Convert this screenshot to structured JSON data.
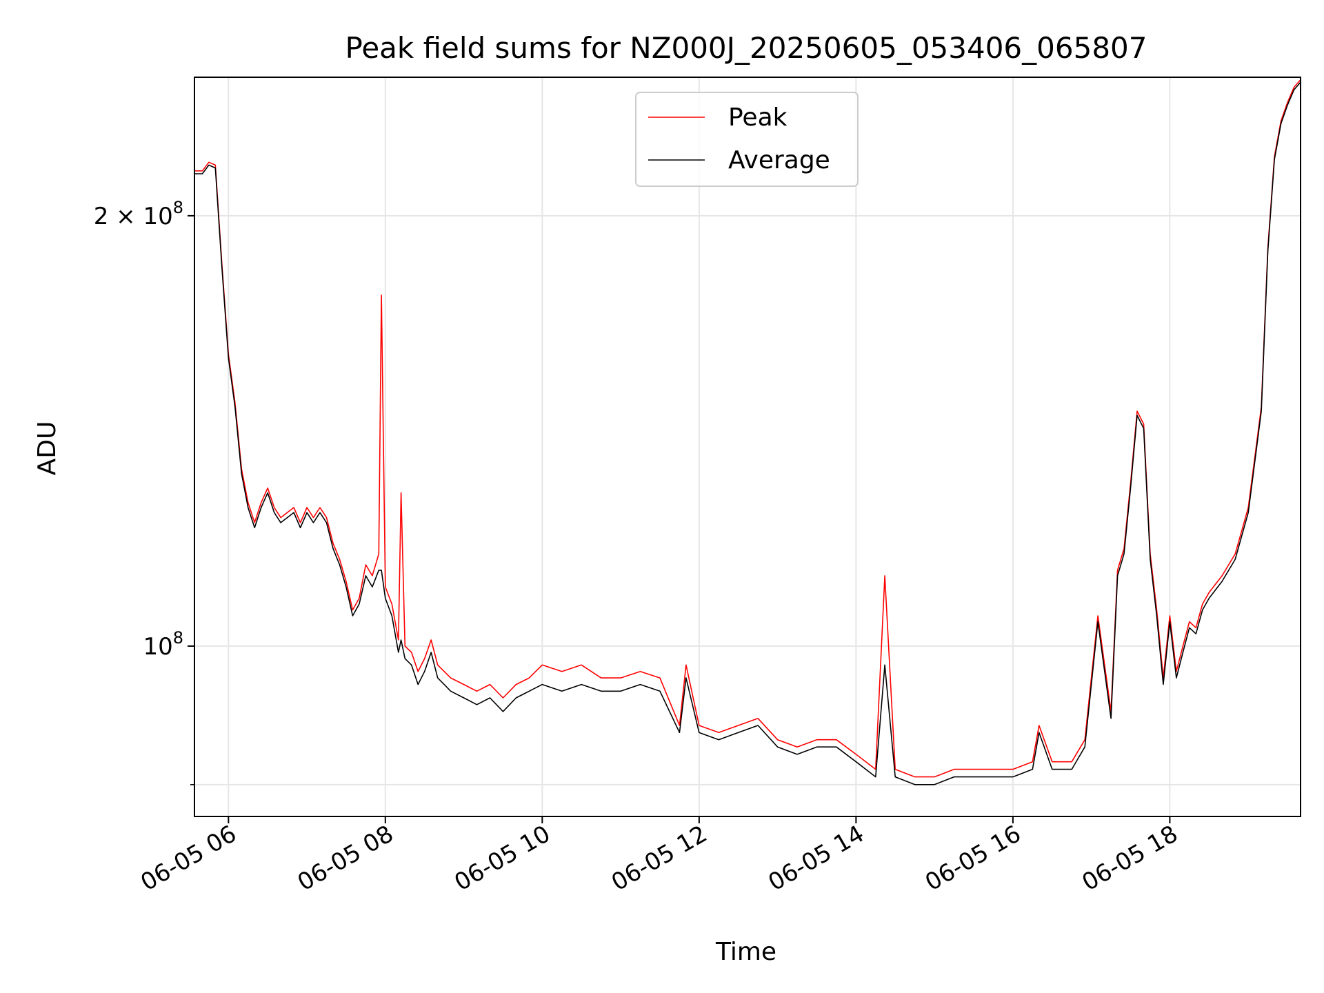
{
  "chart_data": {
    "type": "line",
    "title": "Peak field sums for NZ000J_20250605_053406_065807",
    "xlabel": "Time",
    "ylabel": "ADU",
    "yscale": "log",
    "grid": true,
    "legend_position": "top-center",
    "xlim": [
      "06-05 05:34",
      "06-05 19:40"
    ],
    "ylim": [
      76000000,
      250000000
    ],
    "x_ticks": [
      "06-05 06",
      "06-05 08",
      "06-05 10",
      "06-05 12",
      "06-05 14",
      "06-05 16",
      "06-05 18"
    ],
    "y_ticks": [
      {
        "value": 100000000,
        "label": "10",
        "sup": "8"
      },
      {
        "value": 200000000,
        "label": "2 × 10",
        "sup": "8"
      }
    ],
    "y_minor_ticks": [
      80000000
    ],
    "series": [
      {
        "name": "Peak",
        "color": "#ff0000",
        "x": [
          "06-05 05:34",
          "06-05 05:40",
          "06-05 05:45",
          "06-05 05:50",
          "06-05 05:55",
          "06-05 06:00",
          "06-05 06:05",
          "06-05 06:10",
          "06-05 06:15",
          "06-05 06:20",
          "06-05 06:25",
          "06-05 06:30",
          "06-05 06:35",
          "06-05 06:40",
          "06-05 06:45",
          "06-05 06:50",
          "06-05 06:55",
          "06-05 07:00",
          "06-05 07:05",
          "06-05 07:10",
          "06-05 07:15",
          "06-05 07:20",
          "06-05 07:25",
          "06-05 07:30",
          "06-05 07:35",
          "06-05 07:40",
          "06-05 07:45",
          "06-05 07:50",
          "06-05 07:55",
          "06-05 07:57",
          "06-05 08:00",
          "06-05 08:05",
          "06-05 08:10",
          "06-05 08:12",
          "06-05 08:15",
          "06-05 08:20",
          "06-05 08:25",
          "06-05 08:30",
          "06-05 08:35",
          "06-05 08:40",
          "06-05 08:45",
          "06-05 08:50",
          "06-05 09:00",
          "06-05 09:10",
          "06-05 09:20",
          "06-05 09:30",
          "06-05 09:40",
          "06-05 09:50",
          "06-05 10:00",
          "06-05 10:15",
          "06-05 10:30",
          "06-05 10:45",
          "06-05 11:00",
          "06-05 11:15",
          "06-05 11:30",
          "06-05 11:45",
          "06-05 11:50",
          "06-05 12:00",
          "06-05 12:15",
          "06-05 12:30",
          "06-05 12:45",
          "06-05 13:00",
          "06-05 13:15",
          "06-05 13:30",
          "06-05 13:45",
          "06-05 14:00",
          "06-05 14:15",
          "06-05 14:22",
          "06-05 14:30",
          "06-05 14:45",
          "06-05 15:00",
          "06-05 15:15",
          "06-05 15:30",
          "06-05 15:45",
          "06-05 16:00",
          "06-05 16:15",
          "06-05 16:20",
          "06-05 16:30",
          "06-05 16:45",
          "06-05 16:55",
          "06-05 17:05",
          "06-05 17:15",
          "06-05 17:20",
          "06-05 17:25",
          "06-05 17:30",
          "06-05 17:35",
          "06-05 17:40",
          "06-05 17:45",
          "06-05 17:50",
          "06-05 17:55",
          "06-05 18:00",
          "06-05 18:05",
          "06-05 18:10",
          "06-05 18:15",
          "06-05 18:20",
          "06-05 18:25",
          "06-05 18:30",
          "06-05 18:40",
          "06-05 18:50",
          "06-05 19:00",
          "06-05 19:10",
          "06-05 19:15",
          "06-05 19:20",
          "06-05 19:25",
          "06-05 19:30",
          "06-05 19:35",
          "06-05 19:40"
        ],
        "y": [
          215000000,
          215000000,
          218000000,
          217000000,
          185000000,
          160000000,
          148000000,
          133000000,
          126000000,
          122000000,
          126000000,
          129000000,
          125000000,
          123000000,
          124000000,
          125000000,
          122000000,
          125000000,
          123000000,
          125000000,
          123000000,
          118000000,
          115000000,
          111000000,
          106000000,
          108000000,
          114000000,
          112000000,
          116000000,
          176000000,
          110000000,
          107000000,
          101000000,
          128000000,
          100000000,
          99000000,
          96000000,
          98000000,
          101000000,
          97000000,
          96000000,
          95000000,
          94000000,
          93000000,
          94000000,
          92000000,
          94000000,
          95000000,
          97000000,
          96000000,
          97000000,
          95000000,
          95000000,
          96000000,
          95000000,
          88000000,
          97000000,
          88000000,
          87000000,
          88000000,
          89000000,
          86000000,
          85000000,
          86000000,
          86000000,
          84000000,
          82000000,
          112000000,
          82000000,
          81000000,
          81000000,
          82000000,
          82000000,
          82000000,
          82000000,
          83000000,
          88000000,
          83000000,
          83000000,
          86000000,
          105000000,
          90000000,
          113000000,
          117000000,
          130000000,
          146000000,
          143000000,
          116000000,
          106000000,
          95000000,
          105000000,
          96000000,
          100000000,
          104000000,
          103000000,
          107000000,
          109000000,
          112000000,
          116000000,
          125000000,
          147000000,
          190000000,
          220000000,
          233000000,
          240000000,
          246000000,
          249000000
        ]
      },
      {
        "name": "Average",
        "color": "#000000",
        "x": [
          "06-05 05:34",
          "06-05 05:40",
          "06-05 05:45",
          "06-05 05:50",
          "06-05 05:55",
          "06-05 06:00",
          "06-05 06:05",
          "06-05 06:10",
          "06-05 06:15",
          "06-05 06:20",
          "06-05 06:25",
          "06-05 06:30",
          "06-05 06:35",
          "06-05 06:40",
          "06-05 06:45",
          "06-05 06:50",
          "06-05 06:55",
          "06-05 07:00",
          "06-05 07:05",
          "06-05 07:10",
          "06-05 07:15",
          "06-05 07:20",
          "06-05 07:25",
          "06-05 07:30",
          "06-05 07:35",
          "06-05 07:40",
          "06-05 07:45",
          "06-05 07:50",
          "06-05 07:55",
          "06-05 07:57",
          "06-05 08:00",
          "06-05 08:05",
          "06-05 08:10",
          "06-05 08:12",
          "06-05 08:15",
          "06-05 08:20",
          "06-05 08:25",
          "06-05 08:30",
          "06-05 08:35",
          "06-05 08:40",
          "06-05 08:45",
          "06-05 08:50",
          "06-05 09:00",
          "06-05 09:10",
          "06-05 09:20",
          "06-05 09:30",
          "06-05 09:40",
          "06-05 09:50",
          "06-05 10:00",
          "06-05 10:15",
          "06-05 10:30",
          "06-05 10:45",
          "06-05 11:00",
          "06-05 11:15",
          "06-05 11:30",
          "06-05 11:45",
          "06-05 11:50",
          "06-05 12:00",
          "06-05 12:15",
          "06-05 12:30",
          "06-05 12:45",
          "06-05 13:00",
          "06-05 13:15",
          "06-05 13:30",
          "06-05 13:45",
          "06-05 14:00",
          "06-05 14:15",
          "06-05 14:22",
          "06-05 14:30",
          "06-05 14:45",
          "06-05 15:00",
          "06-05 15:15",
          "06-05 15:30",
          "06-05 15:45",
          "06-05 16:00",
          "06-05 16:15",
          "06-05 16:20",
          "06-05 16:30",
          "06-05 16:45",
          "06-05 16:55",
          "06-05 17:05",
          "06-05 17:15",
          "06-05 17:20",
          "06-05 17:25",
          "06-05 17:30",
          "06-05 17:35",
          "06-05 17:40",
          "06-05 17:45",
          "06-05 17:50",
          "06-05 17:55",
          "06-05 18:00",
          "06-05 18:05",
          "06-05 18:10",
          "06-05 18:15",
          "06-05 18:20",
          "06-05 18:25",
          "06-05 18:30",
          "06-05 18:40",
          "06-05 18:50",
          "06-05 19:00",
          "06-05 19:10",
          "06-05 19:15",
          "06-05 19:20",
          "06-05 19:25",
          "06-05 19:30",
          "06-05 19:35",
          "06-05 19:40"
        ],
        "y": [
          214000000,
          214000000,
          217000000,
          216000000,
          184000000,
          159000000,
          147000000,
          132000000,
          125000000,
          121000000,
          125000000,
          128000000,
          124000000,
          122000000,
          123000000,
          124000000,
          121000000,
          124000000,
          122000000,
          124000000,
          122000000,
          117000000,
          114000000,
          110000000,
          105000000,
          107000000,
          112000000,
          110000000,
          113000000,
          113000000,
          108000000,
          105000000,
          99000000,
          101000000,
          98000000,
          97000000,
          94000000,
          96000000,
          99000000,
          95000000,
          94000000,
          93000000,
          92000000,
          91000000,
          92000000,
          90000000,
          92000000,
          93000000,
          94000000,
          93000000,
          94000000,
          93000000,
          93000000,
          94000000,
          93000000,
          87000000,
          95000000,
          87000000,
          86000000,
          87000000,
          88000000,
          85000000,
          84000000,
          85000000,
          85000000,
          83000000,
          81000000,
          97000000,
          81000000,
          80000000,
          80000000,
          81000000,
          81000000,
          81000000,
          81000000,
          82000000,
          87000000,
          82000000,
          82000000,
          85000000,
          104000000,
          89000000,
          112000000,
          116000000,
          129000000,
          145000000,
          142000000,
          115000000,
          105000000,
          94000000,
          104000000,
          95000000,
          99000000,
          103000000,
          102000000,
          106000000,
          108000000,
          111000000,
          115000000,
          124000000,
          146000000,
          189000000,
          219000000,
          232000000,
          239000000,
          245000000,
          248000000
        ]
      }
    ]
  }
}
